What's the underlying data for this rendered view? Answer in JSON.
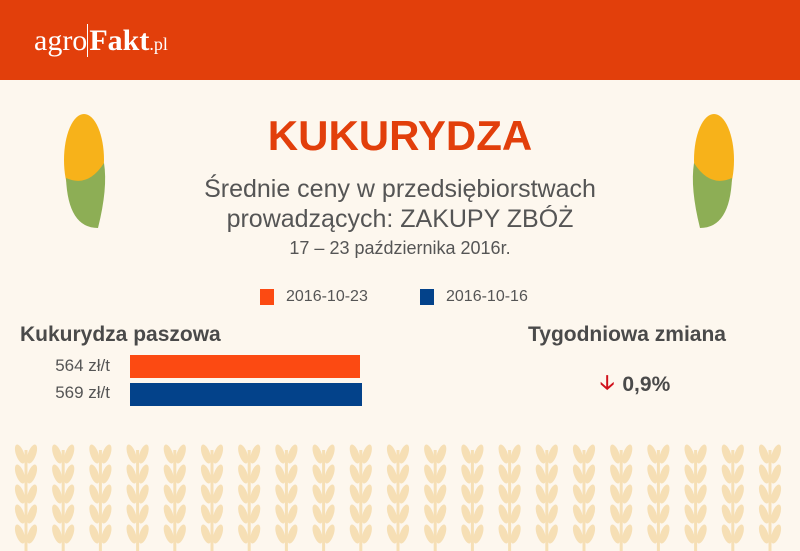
{
  "header": {
    "logo": {
      "part1": "agro",
      "part2": "Fakt",
      "part3": ".pl"
    }
  },
  "title": "KUKURYDZA",
  "subtitle_line1": "Średnie ceny w przedsiębiorstwach",
  "subtitle_line2": "prowadzących: ZAKUPY ZBÓŻ",
  "date_range": "17 – 23 października 2016r.",
  "colors": {
    "header": "#e23f0b",
    "current": "#fc4a12",
    "previous": "#03428a",
    "down_arrow": "#d0101a",
    "wheat": "#f6dfb5"
  },
  "chart_data": {
    "type": "bar",
    "orientation": "horizontal",
    "category": "Kukurydza paszowa",
    "unit": "zł/t",
    "series": [
      {
        "name": "2016-10-23",
        "value": 564,
        "label": "564 zł/t",
        "color": "#fc4a12"
      },
      {
        "name": "2016-10-16",
        "value": 569,
        "label": "569 zł/t",
        "color": "#03428a"
      }
    ],
    "legend": "top-center"
  },
  "change": {
    "heading": "Tygodniowa zmiana",
    "direction": "down",
    "icon": "down-arrow-icon",
    "value": "0,9%"
  }
}
